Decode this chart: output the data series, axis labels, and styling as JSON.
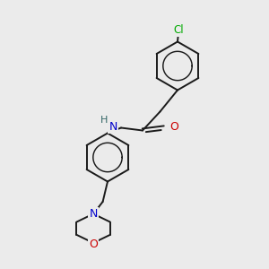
{
  "bg_color": "#ebebeb",
  "bond_color": "#1a1a1a",
  "N_color": "#0000cc",
  "O_color": "#cc0000",
  "Cl_color": "#00aa00",
  "H_color": "#336666",
  "bond_width": 1.4,
  "figsize": [
    3.0,
    3.0
  ],
  "dpi": 100,
  "xlim": [
    0,
    10
  ],
  "ylim": [
    0,
    10
  ]
}
